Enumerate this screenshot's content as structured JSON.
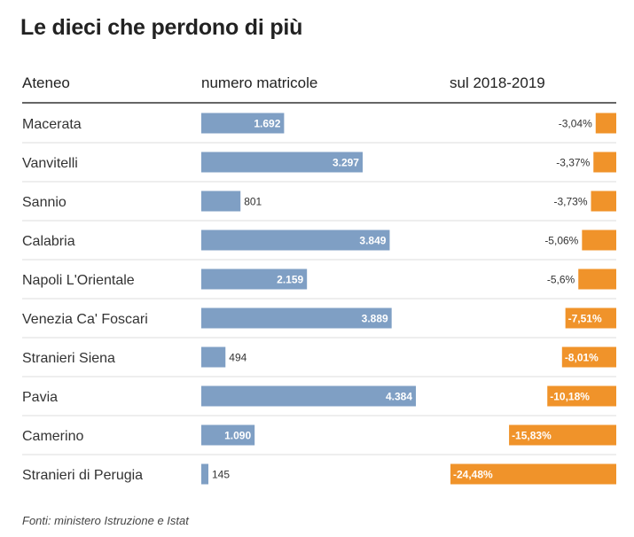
{
  "title": "Le dieci che perdono di più",
  "headers": {
    "ateneo": "Ateneo",
    "matricole": "numero matricole",
    "change": "sul 2018-2019"
  },
  "footer": "Fonti: ministero Istruzione e Istat",
  "colors": {
    "bar_blue": "#7f9fc4",
    "bar_orange": "#f0932a",
    "rule_dark": "#333333",
    "rule_light": "#dddddd"
  },
  "chart_data": {
    "type": "table",
    "title": "Le dieci che perdono di più",
    "columns": [
      "Ateneo",
      "numero matricole",
      "sul 2018-2019"
    ],
    "series": [
      {
        "name": "numero matricole",
        "values": [
          1692,
          3297,
          801,
          3849,
          2159,
          3889,
          494,
          4384,
          1090,
          145
        ]
      },
      {
        "name": "sul 2018-2019",
        "values": [
          -3.04,
          -3.37,
          -3.73,
          -5.06,
          -5.6,
          -7.51,
          -8.01,
          -10.18,
          -15.83,
          -24.48
        ]
      }
    ],
    "rows": [
      {
        "ateneo": "Macerata",
        "matricole": 1692,
        "matricole_label": "1.692",
        "change": -3.04,
        "change_label": "-3,04%"
      },
      {
        "ateneo": "Vanvitelli",
        "matricole": 3297,
        "matricole_label": "3.297",
        "change": -3.37,
        "change_label": "-3,37%"
      },
      {
        "ateneo": "Sannio",
        "matricole": 801,
        "matricole_label": "801",
        "change": -3.73,
        "change_label": "-3,73%"
      },
      {
        "ateneo": "Calabria",
        "matricole": 3849,
        "matricole_label": "3.849",
        "change": -5.06,
        "change_label": "-5,06%"
      },
      {
        "ateneo": "Napoli L'Orientale",
        "matricole": 2159,
        "matricole_label": "2.159",
        "change": -5.6,
        "change_label": "-5,6%"
      },
      {
        "ateneo": "Venezia Ca' Foscari",
        "matricole": 3889,
        "matricole_label": "3.889",
        "change": -7.51,
        "change_label": "-7,51%"
      },
      {
        "ateneo": "Stranieri Siena",
        "matricole": 494,
        "matricole_label": "494",
        "change": -8.01,
        "change_label": "-8,01%"
      },
      {
        "ateneo": "Pavia",
        "matricole": 4384,
        "matricole_label": "4.384",
        "change": -10.18,
        "change_label": "-10,18%"
      },
      {
        "ateneo": "Camerino",
        "matricole": 1090,
        "matricole_label": "1.090",
        "change": -15.83,
        "change_label": "-15,83%"
      },
      {
        "ateneo": "Stranieri di Perugia",
        "matricole": 145,
        "matricole_label": "145",
        "change": -24.48,
        "change_label": "-24,48%"
      }
    ]
  }
}
